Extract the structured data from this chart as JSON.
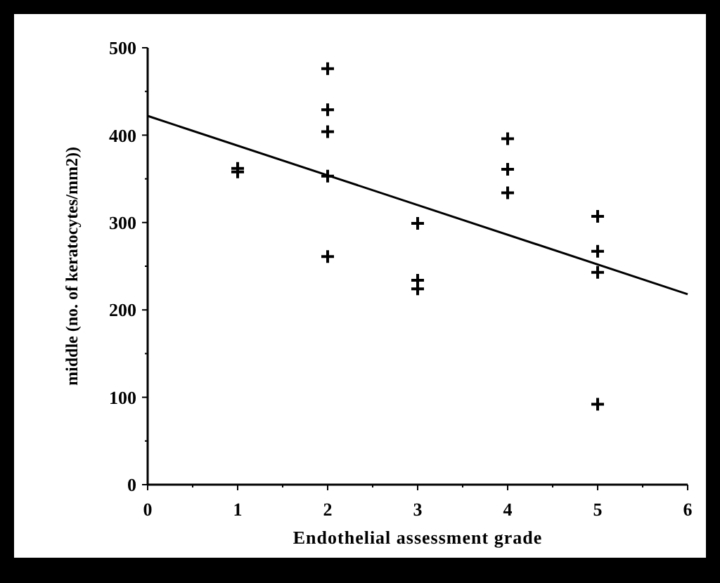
{
  "chart_data": {
    "type": "scatter",
    "xlabel": "Endothelial assessment grade",
    "ylabel": "middle (no. of keratocytes/mm2))",
    "xlim": [
      0,
      6
    ],
    "ylim": [
      0,
      500
    ],
    "xticks": [
      0,
      {
        "value": 0.5,
        "label": null
      },
      1,
      {
        "value": 1.5,
        "label": null
      },
      2,
      {
        "value": 2.5,
        "label": null
      },
      3,
      {
        "value": 3.5,
        "label": null
      },
      4,
      {
        "value": 4.5,
        "label": null
      },
      5,
      {
        "value": 5.5,
        "label": null
      },
      6
    ],
    "yticks": [
      0,
      {
        "value": 50,
        "label": null
      },
      100,
      {
        "value": 150,
        "label": null
      },
      200,
      {
        "value": 250,
        "label": null
      },
      300,
      {
        "value": 350,
        "label": null
      },
      400,
      {
        "value": 450,
        "label": null
      },
      500
    ],
    "marker": "cross",
    "grid": false,
    "series": [
      {
        "color": "#000000",
        "x": [
          1,
          1,
          2,
          2,
          2,
          2,
          2,
          3,
          3,
          3,
          4,
          4,
          4,
          5,
          5,
          5,
          5
        ],
        "values": [
          358,
          362,
          476,
          429,
          404,
          353,
          261,
          299,
          234,
          224,
          396,
          361,
          334,
          307,
          267,
          243,
          92
        ]
      },
      {
        "type": "line",
        "color": "#000000",
        "x": [
          0,
          6
        ],
        "values": [
          422,
          218
        ],
        "marker": "none"
      }
    ]
  }
}
